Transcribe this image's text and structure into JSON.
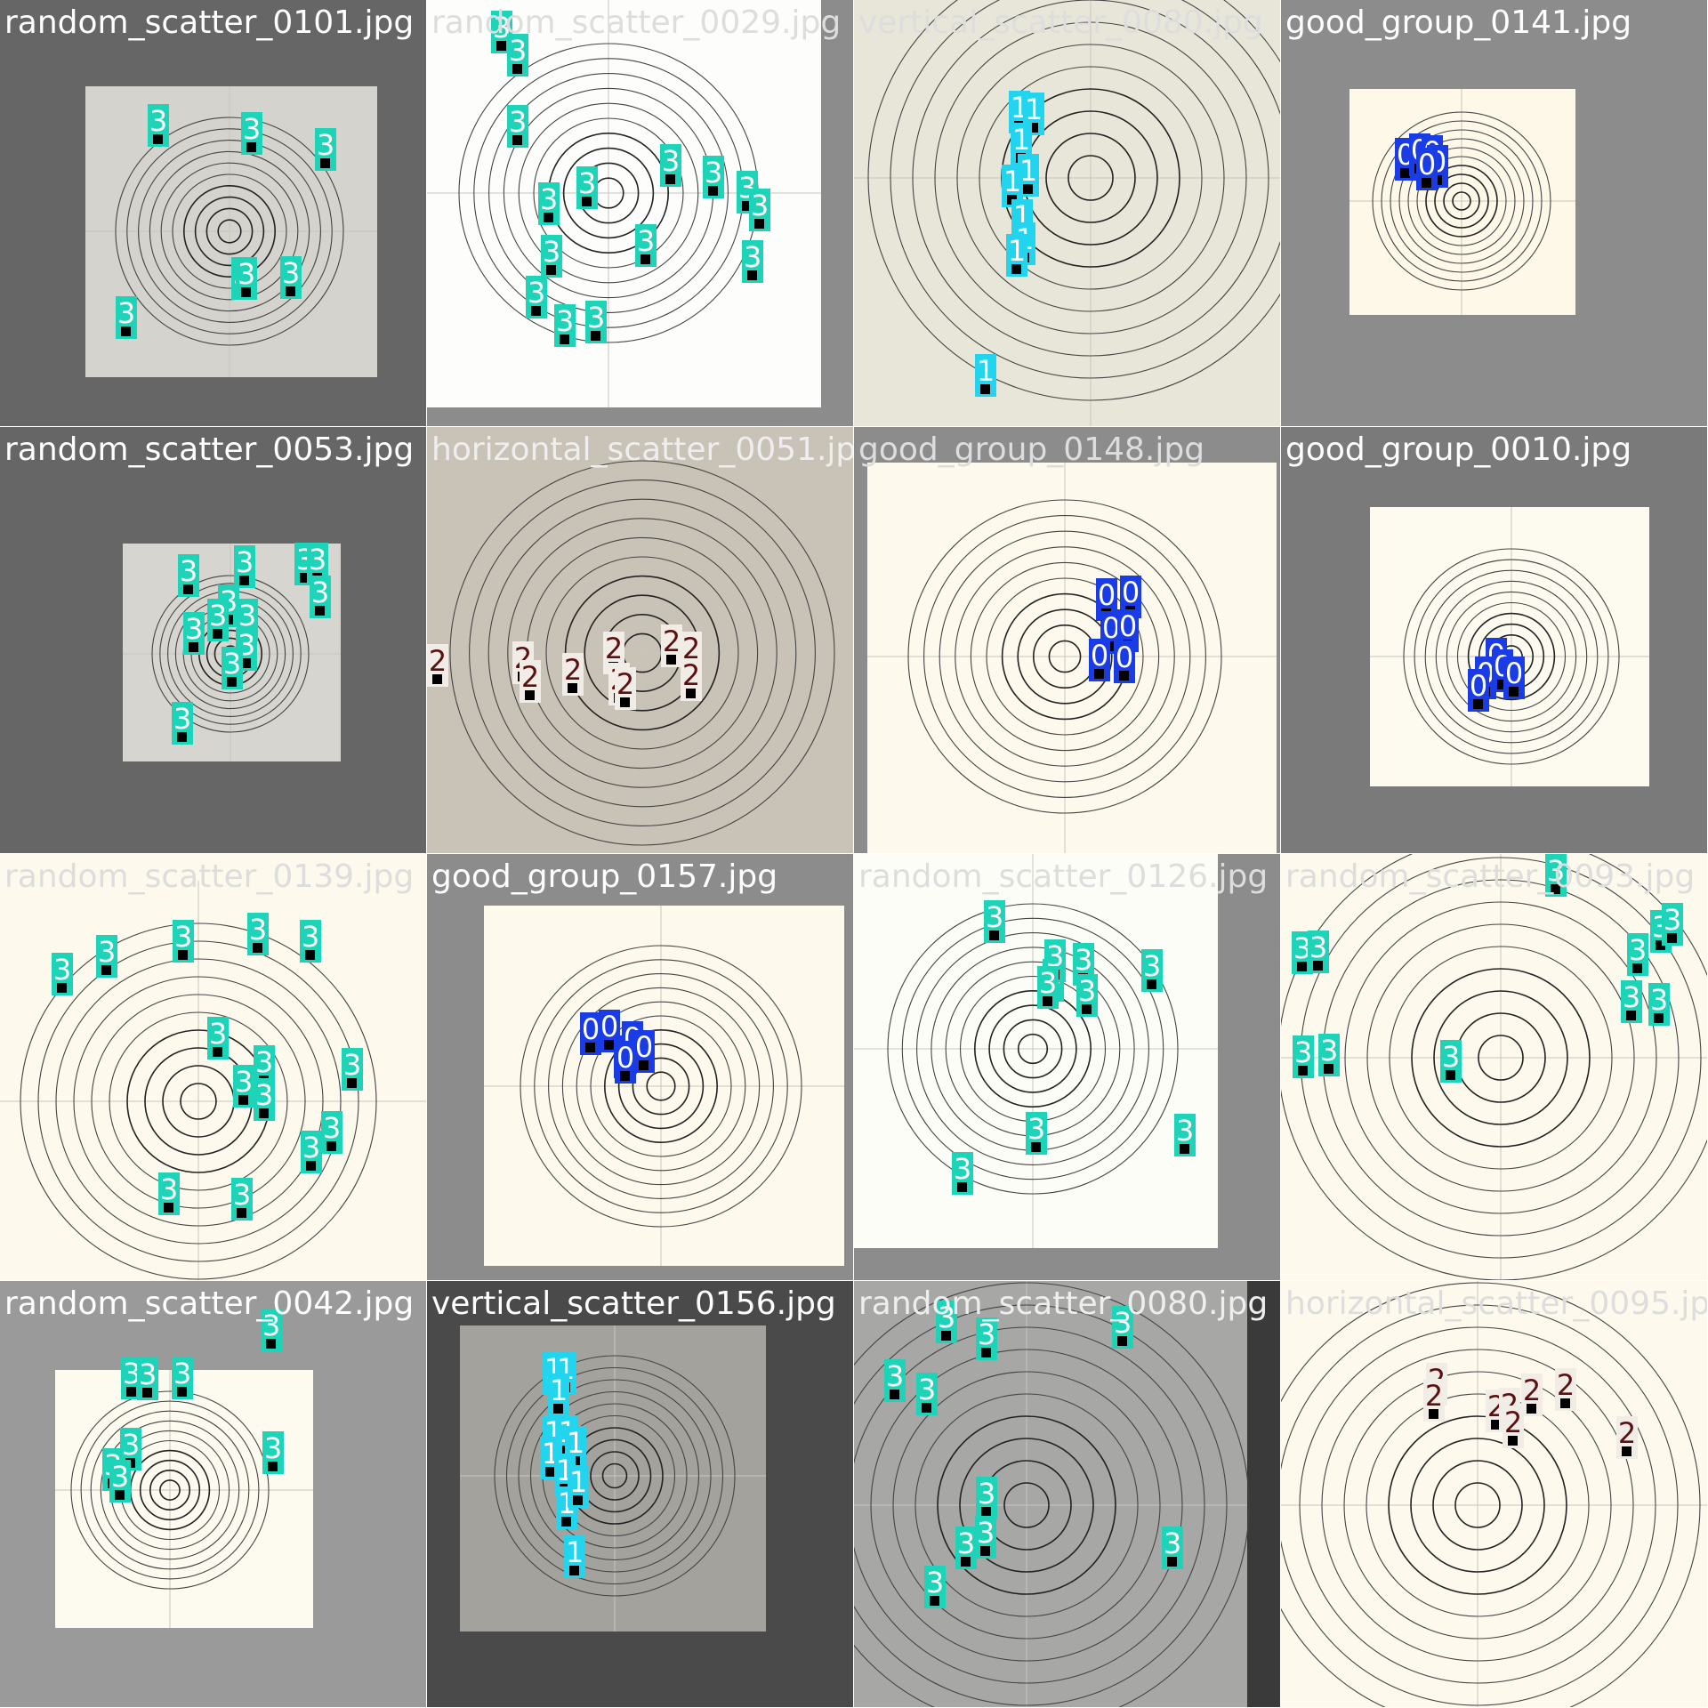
{
  "class_colors": {
    "0": "#1a3ce6",
    "1": "#22d4ee",
    "2": "#f2ece6",
    "3": "#1ed4b8"
  },
  "class_text_colors": {
    "0": "#ffffff",
    "1": "#ffffff",
    "2": "#5a1010",
    "3": "#ffffff"
  },
  "tiles": [
    {
      "filename": "random_scatter_0101.jpg",
      "label_color": "#ffffff",
      "bg": "#666666",
      "target_bg": "#d4d3cd",
      "detections": [
        {
          "c": "3",
          "l": "3"
        },
        {
          "c": "3",
          "l": "3"
        },
        {
          "c": "3",
          "l": "3"
        },
        {
          "c": "3",
          "l": "3"
        },
        {
          "c": "3",
          "l": "3"
        },
        {
          "c": "3",
          "l": "3"
        },
        {
          "c": "3",
          "l": "3"
        }
      ]
    },
    {
      "filename": "random_scatter_0029.jpg",
      "label_color": "#dddddd",
      "bg": "#8c8c8c",
      "target_bg": "#fdfdfb",
      "detections": [
        {
          "c": "3",
          "l": "3"
        },
        {
          "c": "3",
          "l": "3"
        },
        {
          "c": "3",
          "l": "3"
        },
        {
          "c": "3",
          "l": "3"
        },
        {
          "c": "3",
          "l": "3"
        },
        {
          "c": "3",
          "l": "3"
        },
        {
          "c": "3",
          "l": "3"
        },
        {
          "c": "3",
          "l": "3"
        },
        {
          "c": "3",
          "l": "3"
        },
        {
          "c": "3",
          "l": "3"
        },
        {
          "c": "3",
          "l": "3"
        },
        {
          "c": "3",
          "l": "3"
        },
        {
          "c": "3",
          "l": "3"
        },
        {
          "c": "3",
          "l": "3"
        },
        {
          "c": "3",
          "l": "3"
        }
      ]
    },
    {
      "filename": "vertical_scatter_0080.jpg",
      "label_color": "#dddddd",
      "bg": "#e8e6d8",
      "target_bg": "#e8e6d8",
      "detections": [
        {
          "c": "1",
          "l": "1"
        },
        {
          "c": "1",
          "l": "1"
        },
        {
          "c": "1",
          "l": "1"
        },
        {
          "c": "1",
          "l": "1"
        },
        {
          "c": "1",
          "l": "1"
        },
        {
          "c": "1",
          "l": "1"
        },
        {
          "c": "1",
          "l": "1"
        },
        {
          "c": "1",
          "l": "1"
        },
        {
          "c": "1",
          "l": "1"
        }
      ]
    },
    {
      "filename": "good_group_0141.jpg",
      "label_color": "#ffffff",
      "bg": "#8c8c8c",
      "target_bg": "#fdf8e8",
      "detections": [
        {
          "c": "0",
          "l": "0"
        },
        {
          "c": "0",
          "l": "0"
        },
        {
          "c": "0",
          "l": "0"
        },
        {
          "c": "0",
          "l": "0"
        },
        {
          "c": "0",
          "l": "0"
        }
      ]
    },
    {
      "filename": "random_scatter_0053.jpg",
      "label_color": "#ffffff",
      "bg": "#666666",
      "target_bg": "#d6d5cf",
      "detections": [
        {
          "c": "3",
          "l": "3"
        },
        {
          "c": "3",
          "l": "3"
        },
        {
          "c": "3",
          "l": "3"
        },
        {
          "c": "3",
          "l": "3"
        },
        {
          "c": "3",
          "l": "3"
        },
        {
          "c": "3",
          "l": "3"
        },
        {
          "c": "3",
          "l": "3"
        },
        {
          "c": "3",
          "l": "3"
        },
        {
          "c": "3",
          "l": "3"
        },
        {
          "c": "3",
          "l": "3"
        },
        {
          "c": "3",
          "l": "3"
        },
        {
          "c": "3",
          "l": "3"
        }
      ]
    },
    {
      "filename": "horizontal_scatter_0051.jpg",
      "label_color": "#eeeeee",
      "bg": "#c9c3b7",
      "target_bg": "#c9c3b7",
      "detections": [
        {
          "c": "2",
          "l": "2"
        },
        {
          "c": "2",
          "l": "2"
        },
        {
          "c": "2",
          "l": "2"
        },
        {
          "c": "2",
          "l": "2"
        },
        {
          "c": "2",
          "l": "2"
        },
        {
          "c": "2",
          "l": "2"
        },
        {
          "c": "2",
          "l": "2"
        },
        {
          "c": "2",
          "l": "2"
        },
        {
          "c": "2",
          "l": "2"
        },
        {
          "c": "2",
          "l": "2"
        }
      ]
    },
    {
      "filename": "good_group_0148.jpg",
      "label_color": "#dddddd",
      "bg": "#8c8c8c",
      "target_bg": "#fdf9ec",
      "detections": [
        {
          "c": "0",
          "l": "0"
        },
        {
          "c": "0",
          "l": "0"
        },
        {
          "c": "0",
          "l": "0"
        },
        {
          "c": "0",
          "l": "0"
        },
        {
          "c": "0",
          "l": "0"
        },
        {
          "c": "0",
          "l": "0"
        }
      ]
    },
    {
      "filename": "good_group_0010.jpg",
      "label_color": "#ffffff",
      "bg": "#7a7a7a",
      "target_bg": "#fdfbf0",
      "detections": [
        {
          "c": "0",
          "l": "0"
        },
        {
          "c": "0",
          "l": "0"
        },
        {
          "c": "0",
          "l": "0"
        },
        {
          "c": "0",
          "l": "0"
        },
        {
          "c": "0",
          "l": "0"
        }
      ]
    },
    {
      "filename": "random_scatter_0139.jpg",
      "label_color": "#dddddd",
      "bg": "#fdf9ec",
      "target_bg": "#fdf9ec",
      "detections": [
        {
          "c": "3",
          "l": "3"
        },
        {
          "c": "3",
          "l": "3"
        },
        {
          "c": "3",
          "l": "3"
        },
        {
          "c": "3",
          "l": "3"
        },
        {
          "c": "3",
          "l": "3"
        },
        {
          "c": "3",
          "l": "3"
        },
        {
          "c": "3",
          "l": "3"
        },
        {
          "c": "3",
          "l": "3"
        },
        {
          "c": "3",
          "l": "3"
        },
        {
          "c": "3",
          "l": "3"
        },
        {
          "c": "3",
          "l": "3"
        },
        {
          "c": "3",
          "l": "3"
        },
        {
          "c": "3",
          "l": "3"
        },
        {
          "c": "3",
          "l": "3"
        }
      ]
    },
    {
      "filename": "good_group_0157.jpg",
      "label_color": "#ffffff",
      "bg": "#8c8c8c",
      "target_bg": "#fdf9ec",
      "detections": [
        {
          "c": "0",
          "l": "0"
        },
        {
          "c": "0",
          "l": "0"
        },
        {
          "c": "0",
          "l": "0"
        },
        {
          "c": "0",
          "l": "0"
        },
        {
          "c": "0",
          "l": "0"
        },
        {
          "c": "0",
          "l": "0"
        }
      ]
    },
    {
      "filename": "random_scatter_0126.jpg",
      "label_color": "#dddddd",
      "bg": "#8c8c8c",
      "target_bg": "#fdfdf8",
      "detections": [
        {
          "c": "3",
          "l": "3"
        },
        {
          "c": "3",
          "l": "3"
        },
        {
          "c": "3",
          "l": "3"
        },
        {
          "c": "3",
          "l": "3"
        },
        {
          "c": "3",
          "l": "3"
        },
        {
          "c": "3",
          "l": "3"
        },
        {
          "c": "3",
          "l": "3"
        },
        {
          "c": "3",
          "l": "3"
        },
        {
          "c": "3",
          "l": "3"
        },
        {
          "c": "3",
          "l": "3"
        }
      ]
    },
    {
      "filename": "random_scatter_0093.jpg",
      "label_color": "#dddddd",
      "bg": "#fdf9ec",
      "target_bg": "#fdf9ec",
      "detections": [
        {
          "c": "3",
          "l": "3"
        },
        {
          "c": "3",
          "l": "3"
        },
        {
          "c": "3",
          "l": "3"
        },
        {
          "c": "3",
          "l": "3"
        },
        {
          "c": "3",
          "l": "3"
        },
        {
          "c": "3",
          "l": "3"
        },
        {
          "c": "3",
          "l": "3"
        },
        {
          "c": "3",
          "l": "3"
        },
        {
          "c": "3",
          "l": "3"
        },
        {
          "c": "3",
          "l": "3"
        },
        {
          "c": "3",
          "l": "3"
        }
      ]
    },
    {
      "filename": "random_scatter_0042.jpg",
      "label_color": "#ffffff",
      "bg": "#9a9a9a",
      "target_bg": "#fdfbf0",
      "detections": [
        {
          "c": "3",
          "l": "3"
        },
        {
          "c": "3",
          "l": "3"
        },
        {
          "c": "3",
          "l": "3"
        },
        {
          "c": "3",
          "l": "3"
        },
        {
          "c": "3",
          "l": "3"
        },
        {
          "c": "3",
          "l": "3"
        },
        {
          "c": "3",
          "l": "3"
        },
        {
          "c": "3",
          "l": "3"
        }
      ]
    },
    {
      "filename": "vertical_scatter_0156.jpg",
      "label_color": "#ffffff",
      "bg": "#4a4a4a",
      "target_bg": "#a3a29d",
      "detections": [
        {
          "c": "1",
          "l": "1"
        },
        {
          "c": "1",
          "l": "1"
        },
        {
          "c": "1",
          "l": "1"
        },
        {
          "c": "1",
          "l": "1"
        },
        {
          "c": "1",
          "l": "1"
        },
        {
          "c": "1",
          "l": "1"
        },
        {
          "c": "1",
          "l": "1"
        },
        {
          "c": "1",
          "l": "1"
        },
        {
          "c": "1",
          "l": "1"
        },
        {
          "c": "1",
          "l": "1"
        },
        {
          "c": "1",
          "l": "1"
        }
      ]
    },
    {
      "filename": "random_scatter_0080.jpg",
      "label_color": "#eeeeee",
      "bg": "#3a3a3a",
      "target_bg": "#a7a7a5",
      "detections": [
        {
          "c": "3",
          "l": "3"
        },
        {
          "c": "3",
          "l": "3"
        },
        {
          "c": "3",
          "l": "3"
        },
        {
          "c": "3",
          "l": "3"
        },
        {
          "c": "3",
          "l": "3"
        },
        {
          "c": "3",
          "l": "3"
        },
        {
          "c": "3",
          "l": "3"
        },
        {
          "c": "3",
          "l": "3"
        },
        {
          "c": "3",
          "l": "3"
        },
        {
          "c": "3",
          "l": "3"
        }
      ]
    },
    {
      "filename": "horizontal_scatter_0095.jpg",
      "label_color": "#dddddd",
      "bg": "#fdf9ec",
      "target_bg": "#fdf9ec",
      "detections": [
        {
          "c": "2",
          "l": "2"
        },
        {
          "c": "2",
          "l": "2"
        },
        {
          "c": "2",
          "l": "2"
        },
        {
          "c": "2",
          "l": "2"
        },
        {
          "c": "2",
          "l": "2"
        },
        {
          "c": "2",
          "l": "2"
        },
        {
          "c": "2",
          "l": "2"
        },
        {
          "c": "2",
          "l": "2"
        }
      ]
    }
  ]
}
